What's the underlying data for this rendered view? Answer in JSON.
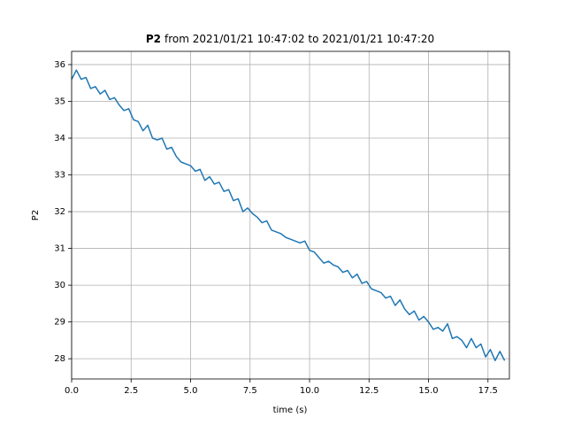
{
  "chart_data": {
    "type": "line",
    "title": {
      "bold": "P2",
      "rest": "from 2021/01/21 10:47:02 to 2021/01/21 10:47:20"
    },
    "xlabel": "time (s)",
    "ylabel": "P2",
    "xlim": [
      0,
      18.4
    ],
    "ylim": [
      27.45,
      36.36
    ],
    "xticks": [
      {
        "value": 0,
        "label": "0.0"
      },
      2.5,
      {
        "value": 5,
        "label": "5.0"
      },
      7.5,
      {
        "value": 10,
        "label": "10.0"
      },
      12.5,
      {
        "value": 15,
        "label": "15.0"
      },
      17.5
    ],
    "yticks": [
      28,
      29,
      30,
      31,
      32,
      33,
      34,
      35,
      36
    ],
    "grid": true,
    "color": "#1f77b4",
    "x": [
      0,
      0.2,
      0.4,
      0.6,
      0.8,
      1.0,
      1.2,
      1.4,
      1.6,
      1.8,
      2.0,
      2.2,
      2.4,
      2.6,
      2.8,
      3.0,
      3.2,
      3.4,
      3.6,
      3.8,
      4.0,
      4.2,
      4.4,
      4.6,
      4.8,
      5.0,
      5.2,
      5.4,
      5.6,
      5.8,
      6.0,
      6.2,
      6.4,
      6.6,
      6.8,
      7.0,
      7.2,
      7.4,
      7.6,
      7.8,
      8.0,
      8.2,
      8.4,
      8.6,
      8.8,
      9.0,
      9.2,
      9.4,
      9.6,
      9.8,
      10.0,
      10.2,
      10.4,
      10.6,
      10.8,
      11.0,
      11.2,
      11.4,
      11.6,
      11.8,
      12.0,
      12.2,
      12.4,
      12.6,
      12.8,
      13.0,
      13.2,
      13.4,
      13.6,
      13.8,
      14.0,
      14.2,
      14.4,
      14.6,
      14.8,
      15.0,
      15.2,
      15.4,
      15.6,
      15.8,
      16.0,
      16.2,
      16.4,
      16.6,
      16.8,
      17.0,
      17.2,
      17.4,
      17.6,
      17.8,
      18.0,
      18.2
    ],
    "values": [
      35.6,
      35.85,
      35.6,
      35.65,
      35.35,
      35.4,
      35.2,
      35.3,
      35.05,
      35.1,
      34.9,
      34.75,
      34.8,
      34.5,
      34.45,
      34.2,
      34.35,
      34.0,
      33.95,
      34.0,
      33.7,
      33.75,
      33.5,
      33.35,
      33.3,
      33.25,
      33.1,
      33.15,
      32.85,
      32.95,
      32.75,
      32.8,
      32.55,
      32.6,
      32.3,
      32.35,
      32.0,
      32.1,
      31.95,
      31.85,
      31.7,
      31.75,
      31.5,
      31.45,
      31.4,
      31.3,
      31.25,
      31.2,
      31.15,
      31.2,
      30.95,
      30.9,
      30.75,
      30.6,
      30.65,
      30.55,
      30.5,
      30.35,
      30.4,
      30.2,
      30.3,
      30.05,
      30.1,
      29.9,
      29.85,
      29.8,
      29.65,
      29.7,
      29.45,
      29.6,
      29.35,
      29.2,
      29.3,
      29.05,
      29.15,
      29.0,
      28.8,
      28.85,
      28.75,
      28.95,
      28.55,
      28.6,
      28.5,
      28.3,
      28.55,
      28.3,
      28.4,
      28.05,
      28.25,
      27.95,
      28.2,
      27.95
    ]
  }
}
